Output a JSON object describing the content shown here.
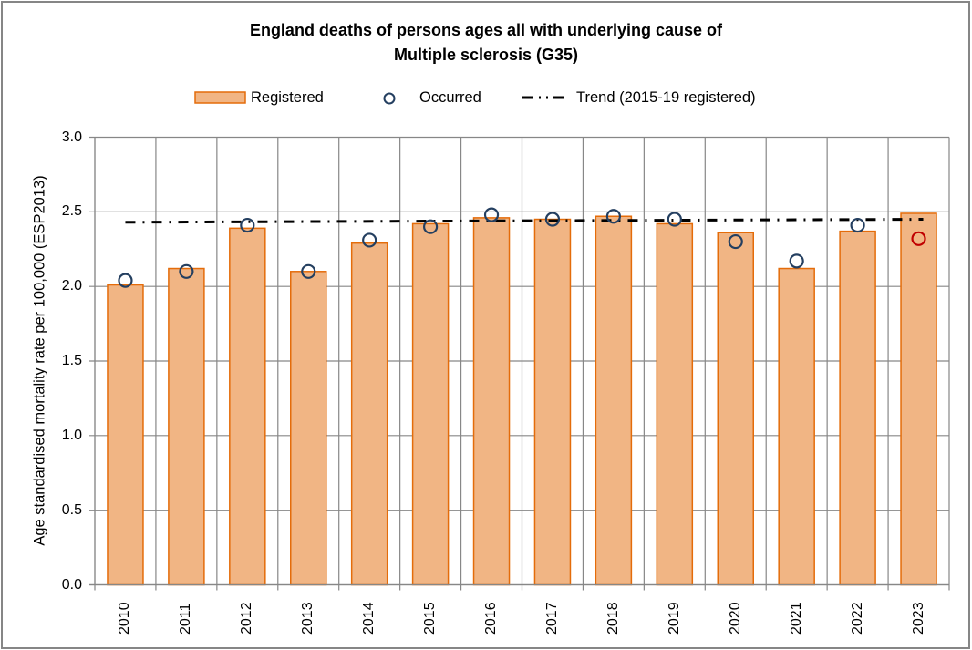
{
  "chart_data": {
    "type": "bar",
    "title": [
      "England deaths of persons ages all with underlying cause of",
      "Multiple sclerosis (G35)"
    ],
    "xlabel": "",
    "ylabel": "Age standardised mortality rate per 100,000 (ESP2013)",
    "ylim": [
      0,
      3.0
    ],
    "yticks": [
      "0.0",
      "0.5",
      "1.0",
      "1.5",
      "2.0",
      "2.5",
      "3.0"
    ],
    "ytick_values": [
      0,
      0.5,
      1.0,
      1.5,
      2.0,
      2.5,
      3.0
    ],
    "grid": true,
    "legend_position": "top-center",
    "categories": [
      "2010",
      "2011",
      "2012",
      "2013",
      "2014",
      "2015",
      "2016",
      "2017",
      "2018",
      "2019",
      "2020",
      "2021",
      "2022",
      "2023"
    ],
    "series": [
      {
        "name": "Registered",
        "kind": "bar",
        "color": "#F1B584",
        "stroke": "#E46C0A",
        "values": [
          2.01,
          2.12,
          2.39,
          2.1,
          2.29,
          2.42,
          2.46,
          2.45,
          2.47,
          2.42,
          2.36,
          2.12,
          2.37,
          2.49
        ]
      },
      {
        "name": "Occurred",
        "kind": "marker-circle",
        "color": "#243F60",
        "highlight_color": "#C00000",
        "highlight_index": 13,
        "values": [
          2.04,
          2.1,
          2.41,
          2.1,
          2.31,
          2.4,
          2.48,
          2.45,
          2.47,
          2.45,
          2.3,
          2.17,
          2.41,
          2.32
        ]
      },
      {
        "name": "Trend (2015-19 registered)",
        "kind": "line-dashdot",
        "color": "#000000",
        "x_start": "2010",
        "x_end": "2023",
        "values": [
          2.43,
          2.45
        ]
      }
    ]
  },
  "legend": {
    "registered": "Registered",
    "occurred": "Occurred",
    "trend": "Trend (2015-19 registered)"
  }
}
